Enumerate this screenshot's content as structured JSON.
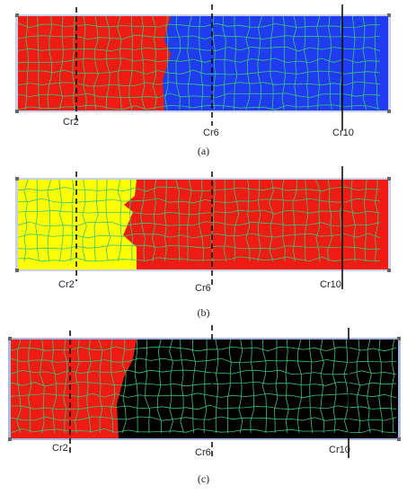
{
  "panels": [
    {
      "caption": "(a)",
      "markers": [
        "Cr2",
        "Cr6",
        "Cr10"
      ]
    },
    {
      "caption": "(b)",
      "markers": [
        "Cr2",
        "Cr6",
        "Cr10"
      ]
    },
    {
      "caption": "(c)",
      "markers": [
        "Cr2",
        "Cr6",
        "Cr10"
      ]
    }
  ]
}
